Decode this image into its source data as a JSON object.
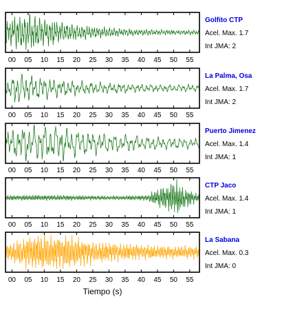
{
  "chart_data": {
    "type": "line",
    "xlabel": "Tiempo (s)",
    "xlim": [
      -2,
      58
    ],
    "x_ticks": [
      "00",
      "05",
      "10",
      "15",
      "20",
      "25",
      "30",
      "35",
      "40",
      "45",
      "50",
      "55"
    ],
    "panels": [
      {
        "station": "Golfito CTP",
        "acel": "Acel. Max. 1.7",
        "int": "Int JMA: 2",
        "color": "#1f7a1f",
        "envelope": {
          "x": [
            0,
            3,
            8,
            15,
            25,
            35,
            45,
            58
          ],
          "amp": [
            0.75,
            0.95,
            0.9,
            0.55,
            0.32,
            0.2,
            0.14,
            0.12
          ]
        },
        "freq": 1.3
      },
      {
        "station": "La Palma, Osa",
        "acel": "Acel. Max. 1.7",
        "int": "Int JMA: 2",
        "color": "#1f7a1f",
        "envelope": {
          "x": [
            0,
            1,
            3,
            8,
            15,
            25,
            35,
            45,
            58
          ],
          "amp": [
            0.5,
            1.0,
            0.85,
            0.6,
            0.45,
            0.32,
            0.25,
            0.2,
            0.18
          ]
        },
        "freq": 0.7
      },
      {
        "station": "Puerto Jimenez",
        "acel": "Acel. Max. 1.4",
        "int": "Int JMA: 1",
        "color": "#1f7a1f",
        "envelope": {
          "x": [
            0,
            5,
            10,
            15,
            20,
            30,
            40,
            50,
            58
          ],
          "amp": [
            0.75,
            0.9,
            0.95,
            0.95,
            0.7,
            0.5,
            0.38,
            0.3,
            0.25
          ]
        },
        "freq": 0.6
      },
      {
        "station": "CTP Jaco",
        "acel": "Acel. Max. 1.4",
        "int": "Int JMA: 1",
        "color": "#1f7a1f",
        "envelope": {
          "x": [
            0,
            15,
            25,
            35,
            42,
            45,
            48,
            51,
            53,
            56,
            58
          ],
          "amp": [
            0.15,
            0.15,
            0.12,
            0.12,
            0.15,
            0.45,
            0.7,
            1.0,
            0.6,
            0.3,
            0.2
          ]
        },
        "freq": 2.2
      },
      {
        "station": "La Sabana",
        "acel": "Acel. Max. 0.3",
        "int": "Int JMA: 0",
        "color": "#ffa500",
        "envelope": {
          "x": [
            0,
            5,
            10,
            15,
            20,
            25,
            35,
            45,
            58
          ],
          "amp": [
            0.55,
            0.9,
            0.95,
            1.0,
            0.8,
            0.6,
            0.45,
            0.38,
            0.32
          ]
        },
        "freq": 2.0
      }
    ]
  }
}
